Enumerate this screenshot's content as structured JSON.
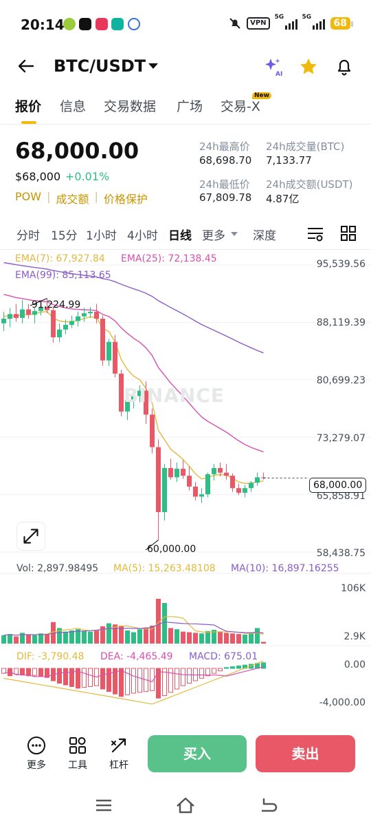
{
  "status": {
    "time": "20:14",
    "vpn": "VPN",
    "net1": "5G",
    "net2": "5G",
    "battery": "68"
  },
  "header": {
    "pair": "BTC/USDT"
  },
  "tabs": [
    "报价",
    "信息",
    "交易数据",
    "广场",
    "交易-X"
  ],
  "new_badge": "New",
  "price": {
    "last": "68,000.00",
    "fiat": "$68,000",
    "change": "+0.01%",
    "links": [
      "POW",
      "成交额",
      "价格保护"
    ]
  },
  "stats": {
    "high_label": "24h最高价",
    "high": "68,698.70",
    "vol_btc_label": "24h成交量(BTC)",
    "vol_btc": "7,133.77",
    "low_label": "24h最低价",
    "low": "67,809.78",
    "vol_usdt_label": "24h成交额(USDT)",
    "vol_usdt": "4.87亿"
  },
  "intervals": [
    "分时",
    "15分",
    "1小时",
    "4小时",
    "日线",
    "更多",
    "深度"
  ],
  "chart": {
    "ema7": "EMA(7): 67,927.84",
    "ema25": "EMA(25): 72,138.45",
    "ema99": "EMA(99): 85,113.65",
    "y_axis": [
      "95,539.56",
      "88,119.39",
      "80,699.23",
      "73,279.07",
      "65,858.91",
      "58,438.75"
    ],
    "high_mark": "91,224.99",
    "low_mark": "60,000.00",
    "current": "68,000.00",
    "watermark": "BINANCE",
    "vol_text": "Vol: 2,897.98495",
    "ma5_text": "MA(5): 15,263.48108",
    "ma10_text": "MA(10): 16,897.16255",
    "vol_axis": [
      "106K",
      "2.9K"
    ],
    "dif_text": "DIF: -3,790.48",
    "dea_text": "DEA: -4,465.49",
    "macd_text": "MACD: 675.01",
    "macd_axis": [
      "0.00",
      "-4,000.00"
    ],
    "colors": {
      "up": "#2ebd85",
      "down": "#e85866",
      "ema7": "#e2b93b",
      "ema25": "#d74fb0",
      "ema99": "#8a5cc9"
    }
  },
  "chart_data": {
    "type": "candlestick",
    "ylim": [
      58438.75,
      95539.56
    ],
    "candles": [
      [
        88000,
        89500,
        87000,
        88600
      ],
      [
        88600,
        90000,
        87500,
        89200
      ],
      [
        89200,
        90500,
        88200,
        88700
      ],
      [
        88700,
        91000,
        88000,
        89800
      ],
      [
        89800,
        90500,
        88600,
        89100
      ],
      [
        89100,
        90000,
        88000,
        89600
      ],
      [
        89600,
        90800,
        89000,
        90100
      ],
      [
        90100,
        91224.99,
        89300,
        89700
      ],
      [
        89700,
        90200,
        85500,
        86200
      ],
      [
        86200,
        88000,
        85600,
        87200
      ],
      [
        87200,
        88500,
        86600,
        87800
      ],
      [
        87800,
        89000,
        87400,
        88300
      ],
      [
        88300,
        89500,
        87600,
        88900
      ],
      [
        88900,
        90000,
        88200,
        89300
      ],
      [
        89300,
        90100,
        88700,
        89500
      ],
      [
        89500,
        90500,
        88000,
        88600
      ],
      [
        88600,
        89000,
        82500,
        83200
      ],
      [
        83200,
        86000,
        82500,
        85600
      ],
      [
        85600,
        86500,
        81000,
        81500
      ],
      [
        81500,
        82000,
        76000,
        76600
      ],
      [
        76600,
        79000,
        75500,
        78100
      ],
      [
        78100,
        79500,
        77000,
        78600
      ],
      [
        78600,
        80000,
        77800,
        79300
      ],
      [
        79300,
        80500,
        75000,
        76200
      ],
      [
        76200,
        77000,
        71200,
        72000
      ],
      [
        72000,
        73000,
        60000,
        63600
      ],
      [
        63600,
        69800,
        62500,
        69300
      ],
      [
        69300,
        70500,
        67800,
        68100
      ],
      [
        68100,
        70000,
        67500,
        69200
      ],
      [
        69200,
        70300,
        67900,
        68300
      ],
      [
        68300,
        69500,
        66400,
        66900
      ],
      [
        66900,
        67500,
        65100,
        65600
      ],
      [
        65600,
        66700,
        64800,
        65900
      ],
      [
        65900,
        68700,
        65500,
        68500
      ],
      [
        68500,
        69800,
        67700,
        69300
      ],
      [
        69300,
        70000,
        68200,
        68700
      ],
      [
        68700,
        69800,
        67800,
        68300
      ],
      [
        68300,
        68600,
        66200,
        66700
      ],
      [
        66700,
        67300,
        65800,
        66100
      ],
      [
        66100,
        67100,
        65500,
        66700
      ],
      [
        66700,
        67600,
        66200,
        67400
      ],
      [
        67400,
        68700,
        67000,
        68100
      ],
      [
        68100,
        68698.7,
        67809.78,
        68000
      ]
    ],
    "volume_ylim": [
      0,
      106000
    ],
    "volume": [
      14,
      16,
      12,
      18,
      15,
      14,
      17,
      16,
      36,
      26,
      20,
      22,
      24,
      21,
      20,
      23,
      29,
      34,
      32,
      30,
      22,
      19,
      24,
      27,
      30,
      75,
      68,
      26,
      24,
      20,
      19,
      18,
      17,
      21,
      23,
      20,
      18,
      17,
      16,
      15,
      18,
      26,
      3
    ],
    "macd_hist": [
      -600,
      -900,
      -700,
      -800,
      -900,
      -850,
      -1000,
      -1100,
      -1500,
      -1800,
      -2000,
      -2200,
      -2400,
      -2300,
      -2200,
      -2100,
      -2500,
      -2800,
      -3100,
      -3400,
      -3200,
      -3000,
      -2900,
      -2800,
      -2700,
      -3600,
      -3300,
      -2900,
      -2500,
      -2100,
      -1800,
      -1500,
      -1200,
      -900,
      -600,
      -300,
      100,
      200,
      300,
      400,
      500,
      600,
      675.01
    ]
  },
  "actions": [
    "更多",
    "工具",
    "杠杆"
  ],
  "buttons": {
    "buy": "买入",
    "sell": "卖出"
  }
}
